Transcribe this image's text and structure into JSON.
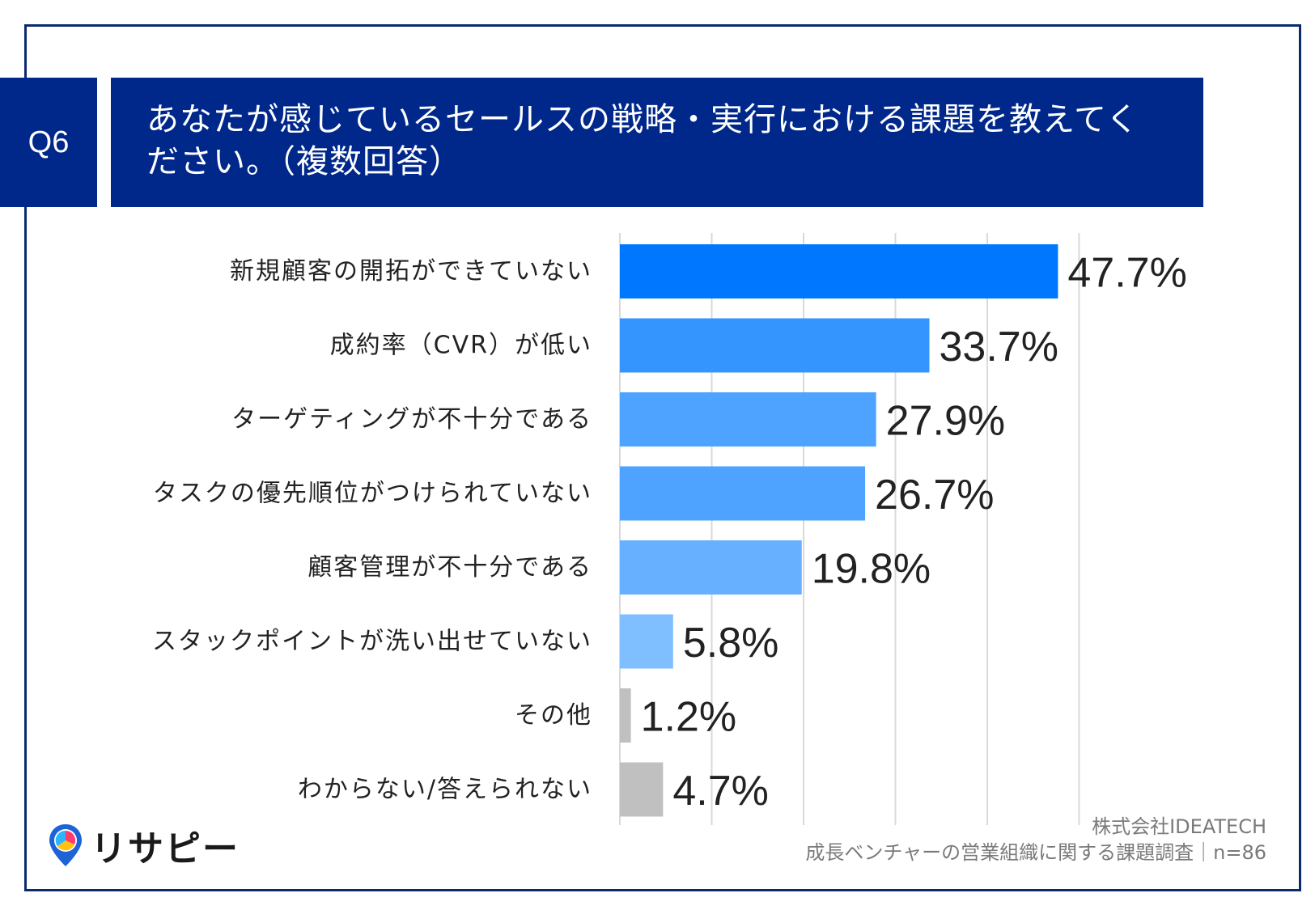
{
  "header": {
    "badge": "Q6",
    "title": "あなたが感じているセールスの戦略・実行における課題を教えてください。（複数回答）"
  },
  "chart_data": {
    "type": "bar",
    "orientation": "horizontal",
    "categories": [
      "新規顧客の開拓ができていない",
      "成約率（CVR）が低い",
      "ターゲティングが不十分である",
      "タスクの優先順位がつけられていない",
      "顧客管理が不十分である",
      "スタックポイントが洗い出せていない",
      "その他",
      "わからない/答えられない"
    ],
    "values": [
      47.7,
      33.7,
      27.9,
      26.7,
      19.8,
      5.8,
      1.2,
      4.7
    ],
    "value_labels": [
      "47.7%",
      "33.7%",
      "27.9%",
      "26.7%",
      "19.8%",
      "5.8%",
      "1.2%",
      "4.7%"
    ],
    "bar_colors": [
      "#0077ff",
      "#3595ff",
      "#4da3ff",
      "#4da3ff",
      "#66b0ff",
      "#80bfff",
      "#c0c0c0",
      "#c0c0c0"
    ],
    "xlim": [
      0,
      60
    ],
    "grid": true
  },
  "footer": {
    "company": "株式会社IDEATECH",
    "survey": "成長ベンチャーの営業組織に関する課題調査｜n=86"
  },
  "logo": {
    "text": "リサピー"
  }
}
